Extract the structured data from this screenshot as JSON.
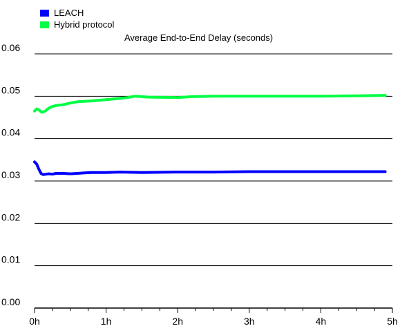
{
  "chart_data": {
    "type": "line",
    "title": "Average End-to-End Delay (seconds)",
    "xlabel": "",
    "ylabel": "",
    "x_unit": "hours",
    "x_ticks": [
      "0h",
      "1h",
      "2h",
      "3h",
      "4h",
      "5h"
    ],
    "y_ticks": [
      "0.00",
      "0.01",
      "0.02",
      "0.03",
      "0.04",
      "0.05",
      "0.06"
    ],
    "xlim": [
      0,
      5
    ],
    "ylim": [
      0,
      0.06
    ],
    "grid": "horizontal",
    "legend_position": "top-left",
    "series": [
      {
        "name": "LEACH",
        "color": "#0000ff",
        "x": [
          0.0,
          0.03,
          0.06,
          0.09,
          0.12,
          0.16,
          0.2,
          0.25,
          0.3,
          0.4,
          0.5,
          0.6,
          0.7,
          0.8,
          1.0,
          1.2,
          1.5,
          2.0,
          2.5,
          3.0,
          3.5,
          4.0,
          4.5,
          4.9
        ],
        "y": [
          0.0345,
          0.034,
          0.0328,
          0.0318,
          0.0315,
          0.0316,
          0.0317,
          0.0316,
          0.0318,
          0.0318,
          0.0317,
          0.0318,
          0.0319,
          0.032,
          0.032,
          0.0321,
          0.032,
          0.0321,
          0.0321,
          0.0322,
          0.0322,
          0.0322,
          0.0322,
          0.0322
        ]
      },
      {
        "name": "Hybrid protocol",
        "color": "#00ff44",
        "x": [
          0.0,
          0.03,
          0.06,
          0.1,
          0.15,
          0.2,
          0.25,
          0.3,
          0.4,
          0.5,
          0.6,
          0.8,
          1.0,
          1.2,
          1.3,
          1.4,
          1.6,
          2.0,
          2.2,
          2.5,
          3.0,
          3.5,
          4.0,
          4.5,
          4.9
        ],
        "y": [
          0.0465,
          0.047,
          0.0468,
          0.0462,
          0.0465,
          0.0472,
          0.0476,
          0.0478,
          0.048,
          0.0484,
          0.0487,
          0.0489,
          0.0492,
          0.0495,
          0.0497,
          0.05,
          0.0498,
          0.0497,
          0.0499,
          0.05,
          0.05,
          0.05,
          0.05,
          0.0501,
          0.0502
        ]
      }
    ]
  }
}
